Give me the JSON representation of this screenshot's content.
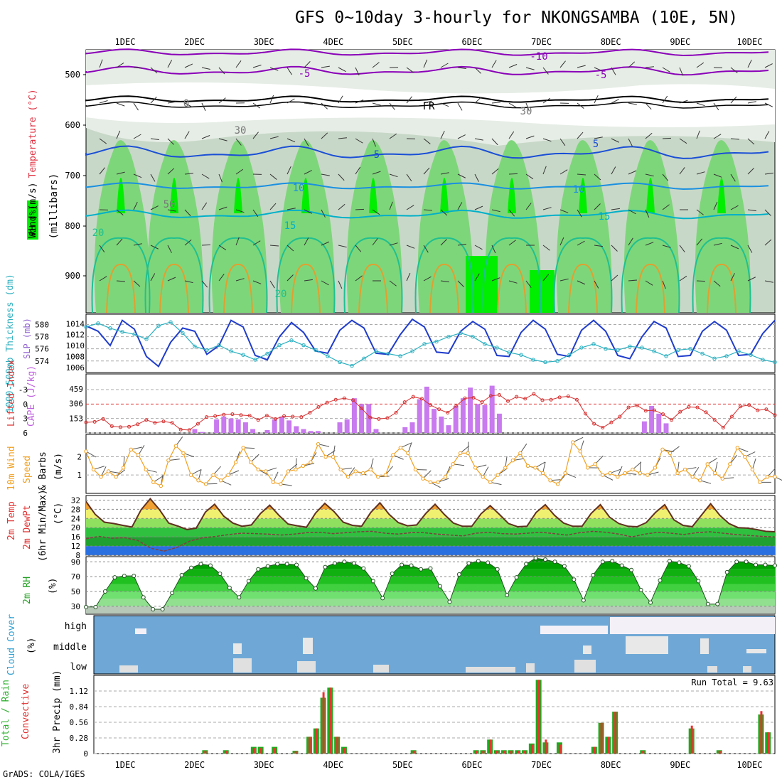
{
  "page": {
    "title": "GFS 0~10day 3-hourly for NKONGSAMBA (10E, 5N)",
    "credit": "GrADS: COLA/IGES"
  },
  "colors": {
    "rh_dark": "#00ee00",
    "rh_mid": "#7ed67a",
    "rh_light": "#c8d8c8",
    "temp_purple": "#8a00b8",
    "temp_blue": "#1a4fd6",
    "temp_cyan": "#00b0c8",
    "slp_line": "#1f3ccc",
    "thick_line": "#2ab0c0",
    "cape_bar": "#c87aee",
    "li_line": "#d63030",
    "wind_line": "#f0a020",
    "cloud_bg": "#6fa8d6",
    "rain_bar": "#1faa1f",
    "conv_bar": "#ee3030"
  },
  "chart_data": [
    {
      "id": "upper_air",
      "type": "heatmap",
      "ylabel_parts": [
        "Wind (m/s)",
        "Temperature (°C)",
        "RH (%)",
        "(millibars)"
      ],
      "y_ticks": [
        "500",
        "600",
        "700",
        "800",
        "900"
      ],
      "x_ticks": [
        "1DEC",
        "2DEC",
        "3DEC",
        "4DEC",
        "5DEC",
        "6DEC",
        "7DEC",
        "8DEC",
        "9DEC",
        "10DEC"
      ],
      "contour_labels": [
        "-10",
        "-5",
        "-5",
        "FR",
        "5",
        "5",
        "10",
        "10",
        "15",
        "15",
        "20",
        "20",
        "30",
        "30",
        "50",
        "0"
      ]
    },
    {
      "id": "slp_thickness",
      "type": "line",
      "ylabel_left": "1000-500mb Thickness (dm)",
      "ylabel_right": "SLP (mb)",
      "left_ticks": [
        "580",
        "578",
        "576",
        "574"
      ],
      "right_ticks": [
        "1014",
        "1012",
        "1010",
        "1008",
        "1006"
      ],
      "series": [
        {
          "name": "SLP (mb)",
          "values": [
            1013.6,
            1012.6,
            1010.0,
            1014.6,
            1013.0,
            1008.0,
            1006.2,
            1010.6,
            1013.2,
            1012.6,
            1008.4,
            1010.0,
            1014.6,
            1013.4,
            1008.2,
            1007.4,
            1011.6,
            1014.2,
            1012.4,
            1009.0,
            1008.6,
            1012.8,
            1014.6,
            1013.2,
            1008.6,
            1008.4,
            1012.0,
            1014.8,
            1013.4,
            1008.8,
            1008.6,
            1012.6,
            1014.4,
            1013.0,
            1008.2,
            1008.0,
            1012.4,
            1014.6,
            1013.0,
            1008.4,
            1008.0,
            1012.8,
            1014.6,
            1012.6,
            1008.2,
            1007.6,
            1011.6,
            1014.4,
            1013.2,
            1008.0,
            1008.2,
            1012.6,
            1014.4,
            1012.8,
            1008.2,
            1008.4,
            1012.2,
            1014.6
          ]
        },
        {
          "name": "Thickness (dm)",
          "values": [
            579.6,
            580.2,
            579.4,
            578.8,
            578.4,
            577.6,
            579.8,
            580.4,
            578.6,
            576.4,
            575.8,
            576.6,
            575.6,
            575.0,
            574.2,
            575.2,
            576.6,
            577.4,
            576.6,
            575.8,
            574.8,
            573.8,
            573.2,
            574.4,
            575.6,
            575.2,
            574.8,
            575.6,
            576.8,
            577.2,
            578.0,
            578.6,
            578.0,
            576.8,
            576.2,
            575.4,
            575.0,
            574.2,
            573.8,
            574.0,
            575.0,
            576.2,
            576.8,
            576.0,
            575.8,
            576.4,
            576.2,
            575.6,
            574.8,
            575.8,
            576.0,
            575.2,
            574.4,
            574.8,
            575.6,
            575.0,
            574.2,
            573.8
          ]
        }
      ]
    },
    {
      "id": "cape_li",
      "type": "bar",
      "ylabel_left": "Lifted Index",
      "ylabel_right": "CAPE (J/kg)",
      "left_ticks": [
        "-3",
        "0",
        "3",
        "6"
      ],
      "right_ticks": [
        "459",
        "306",
        "153"
      ],
      "series": [
        {
          "name": "CAPE (J/kg)",
          "values": [
            0,
            0,
            0,
            0,
            0,
            0,
            0,
            0,
            0,
            0,
            0,
            0,
            0,
            0,
            0,
            40,
            10,
            0,
            140,
            170,
            150,
            140,
            110,
            40,
            0,
            30,
            140,
            170,
            130,
            70,
            40,
            20,
            20,
            0,
            0,
            110,
            140,
            360,
            300,
            300,
            40,
            0,
            0,
            0,
            60,
            110,
            350,
            480,
            250,
            170,
            80,
            280,
            360,
            470,
            300,
            290,
            490,
            200,
            0,
            0,
            0,
            0,
            0,
            0,
            0,
            0,
            0,
            0,
            0,
            0,
            0,
            0,
            0,
            0,
            0,
            0,
            0,
            120,
            280,
            200,
            100,
            0,
            0,
            0,
            0,
            0,
            0,
            0,
            0,
            0,
            0,
            0,
            0,
            0,
            0,
            0
          ]
        },
        {
          "name": "Lifted Index",
          "values": [
            3.8,
            3.7,
            3.1,
            4.6,
            4.8,
            4.7,
            4.2,
            3.3,
            3.9,
            3.6,
            3.9,
            5.3,
            5.4,
            4.1,
            2.7,
            2.5,
            2.2,
            2.1,
            2.3,
            2.4,
            3.3,
            2.4,
            3.1,
            2.5,
            2.6,
            2.7,
            1.8,
            0.6,
            -0.3,
            -0.9,
            -1.2,
            -0.8,
            0.9,
            2.8,
            3.1,
            2.9,
            1.8,
            -0.4,
            -1.5,
            -1.1,
            0.2,
            1.1,
            1.8,
            0.4,
            -1.2,
            -1.3,
            -0.4,
            -1.7,
            -1.9,
            -0.6,
            -1.5,
            -1.1,
            -2.1,
            -0.8,
            -0.9,
            -1.4,
            -1.6,
            -0.9,
            2.0,
            4.1,
            4.9,
            3.8,
            2.6,
            0.7,
            0.3,
            1.4,
            1.3,
            2.1,
            3.3,
            1.6,
            0.6,
            0.7,
            1.7,
            3.3,
            4.9,
            2.6,
            0.5,
            0.2,
            1.3,
            1.1,
            2.3
          ]
        }
      ]
    },
    {
      "id": "wind10m",
      "type": "line",
      "ylabel_parts": [
        "10m Wind",
        "Speed",
        "& Barbs",
        "(m/s)"
      ],
      "y_ticks": [
        "2",
        "1"
      ],
      "series": [
        {
          "name": "10m Wind Speed (m/s)",
          "values": [
            2.3,
            1.3,
            0.9,
            1.2,
            0.9,
            1.4,
            2.4,
            2.1,
            1.3,
            0.6,
            0.4,
            1.8,
            2.6,
            2.2,
            1.0,
            0.7,
            0.5,
            1.0,
            0.7,
            1.0,
            1.7,
            2.5,
            1.7,
            1.3,
            1.2,
            0.6,
            0.5,
            1.2,
            1.3,
            1.5,
            1.7,
            2.7,
            2.0,
            2.0,
            1.3,
            0.9,
            1.2,
            1.1,
            1.3,
            0.9,
            1.0,
            2.1,
            2.5,
            2.2,
            1.3,
            0.8,
            0.6,
            0.6,
            0.9,
            1.6,
            2.2,
            2.2,
            1.4,
            0.9,
            0.6,
            1.0,
            1.4,
            1.8,
            2.2,
            1.5,
            1.4,
            1.1,
            0.7,
            0.5,
            1.1,
            2.8,
            2.3,
            1.4,
            1.6,
            1.0,
            1.1,
            0.9,
            1.1,
            1.3,
            1.1,
            1.0,
            1.4,
            2.4,
            2.2,
            1.1,
            1.3,
            0.9,
            0.7,
            1.6,
            1.1,
            0.8,
            1.6,
            2.5,
            2.0,
            1.3,
            0.6,
            0.9,
            0.9
          ]
        }
      ]
    },
    {
      "id": "temp2m",
      "type": "area",
      "ylabel_parts": [
        "2m Temp",
        "2m DewPt",
        "(6hr Min/Max)",
        "(°C)"
      ],
      "y_ticks": [
        "32",
        "28",
        "24",
        "20",
        "16",
        "12",
        "8"
      ],
      "series": [
        {
          "name": "2m Temp (°C)",
          "values": [
            31.4,
            25.8,
            22.4,
            21.8,
            21.0,
            20.3,
            27.8,
            32.6,
            27.8,
            22.0,
            20.7,
            19.2,
            19.8,
            26.8,
            30.2,
            25.0,
            22.0,
            20.6,
            21.2,
            26.2,
            29.8,
            25.4,
            21.6,
            20.8,
            20.2,
            26.4,
            30.6,
            27.0,
            22.4,
            21.0,
            20.6,
            26.6,
            30.8,
            25.8,
            22.2,
            20.8,
            21.2,
            26.2,
            30.2,
            25.8,
            22.0,
            20.6,
            20.6,
            26.0,
            29.6,
            25.8,
            21.8,
            20.4,
            20.6,
            26.6,
            30.0,
            25.4,
            22.0,
            20.6,
            20.6,
            26.2,
            30.0,
            24.6,
            21.8,
            20.6,
            20.4,
            22.2,
            26.6,
            30.0,
            23.4,
            21.0,
            20.4,
            25.4,
            30.4,
            25.4,
            21.8,
            20.0,
            19.8,
            19.2,
            18.4,
            18.2
          ]
        },
        {
          "name": "2m DewPt (°C)",
          "values": [
            15.2,
            16.2,
            15.4,
            15.6,
            14.4,
            11.0,
            9.8,
            11.4,
            14.2,
            15.6,
            16.2,
            17.0,
            17.6,
            17.4,
            17.2,
            16.8,
            17.2,
            17.8,
            18.0,
            17.4,
            17.8,
            18.2,
            18.4,
            17.6,
            17.2,
            17.8,
            17.8,
            17.2,
            16.8,
            16.4,
            17.6,
            18.0,
            17.4,
            17.2,
            17.6,
            18.0,
            17.4,
            16.8,
            17.8,
            18.4,
            18.0,
            17.2,
            16.0,
            17.2,
            18.0,
            17.6,
            17.0,
            17.8,
            18.2,
            17.6,
            17.0,
            16.6,
            16.2,
            16.0
          ]
        }
      ]
    },
    {
      "id": "rh2m",
      "type": "area",
      "ylabel_parts": [
        "2m RH",
        "(%)"
      ],
      "y_ticks": [
        "90",
        "70",
        "50",
        "30"
      ],
      "series": [
        {
          "name": "2m RH (%)",
          "values": [
            29,
            29,
            50,
            69,
            71,
            71,
            42,
            26,
            26,
            48,
            72,
            82,
            87,
            85,
            74,
            55,
            42,
            64,
            80,
            84,
            87,
            87,
            86,
            68,
            54,
            83,
            88,
            90,
            88,
            81,
            64,
            41,
            74,
            86,
            85,
            80,
            81,
            57,
            36,
            73,
            88,
            91,
            89,
            80,
            45,
            69,
            87,
            95,
            93,
            90,
            84,
            66,
            38,
            72,
            90,
            91,
            85,
            79,
            52,
            35,
            65,
            91,
            89,
            84,
            64,
            33,
            33,
            76,
            90,
            90,
            86,
            86,
            85
          ]
        }
      ]
    },
    {
      "id": "cloud",
      "type": "bar",
      "ylabel_parts": [
        "Cloud Cover",
        "(%)"
      ],
      "y_ticks": [
        "high",
        "middle",
        "low"
      ]
    },
    {
      "id": "precip",
      "type": "bar",
      "ylabel_parts": [
        "Total / Rain",
        "Convective",
        "3hr Precip (mm)"
      ],
      "y_ticks": [
        "1.12",
        "0.84",
        "0.56",
        "0.28",
        "0"
      ],
      "x_ticks": [
        "1DEC",
        "2DEC",
        "3DEC",
        "4DEC",
        "5DEC",
        "6DEC",
        "7DEC",
        "8DEC",
        "9DEC",
        "10DEC"
      ],
      "annotation": "Run Total = 9.63",
      "series": [
        {
          "name": "Total / Rain (mm)",
          "values": [
            0,
            0,
            0,
            0,
            0,
            0,
            0,
            0,
            0,
            0,
            0,
            0,
            0,
            0,
            0,
            0,
            0.06,
            0,
            0,
            0.06,
            0,
            0,
            0,
            0.12,
            0.12,
            0,
            0.12,
            0,
            0,
            0.05,
            0,
            0.3,
            0.45,
            1.0,
            1.18,
            0.3,
            0.12,
            0,
            0,
            0,
            0,
            0,
            0,
            0,
            0,
            0,
            0.06,
            0,
            0,
            0,
            0,
            0,
            0,
            0,
            0,
            0.06,
            0.06,
            0.25,
            0.06,
            0.06,
            0.06,
            0.06,
            0.06,
            0.18,
            1.32,
            0.2,
            0,
            0.2,
            0,
            0,
            0,
            0,
            0.12,
            0.55,
            0.3,
            0.75,
            0,
            0,
            0,
            0.06,
            0,
            0,
            0,
            0,
            0,
            0,
            0.45,
            0,
            0,
            0,
            0.06,
            0,
            0,
            0,
            0,
            0,
            0.7,
            0.38,
            0
          ]
        },
        {
          "name": "Convective (mm)",
          "values": [
            0,
            0,
            0,
            0,
            0,
            0,
            0,
            0,
            0,
            0,
            0,
            0,
            0,
            0,
            0,
            0,
            0.05,
            0,
            0,
            0.05,
            0,
            0,
            0,
            0.1,
            0.1,
            0,
            0.1,
            0,
            0,
            0.04,
            0,
            0.3,
            0.45,
            1.1,
            1.18,
            0.3,
            0.1,
            0,
            0,
            0,
            0,
            0,
            0,
            0,
            0,
            0,
            0.05,
            0,
            0,
            0,
            0,
            0,
            0,
            0,
            0,
            0.05,
            0.05,
            0.25,
            0.05,
            0.05,
            0.05,
            0.05,
            0.05,
            0.16,
            1.32,
            0.25,
            0,
            0.16,
            0,
            0,
            0,
            0,
            0.12,
            0.55,
            0.3,
            0.75,
            0,
            0,
            0,
            0.05,
            0,
            0,
            0,
            0,
            0,
            0,
            0.5,
            0,
            0,
            0,
            0.05,
            0,
            0,
            0,
            0,
            0,
            0.76,
            0.38,
            0
          ]
        }
      ]
    }
  ]
}
